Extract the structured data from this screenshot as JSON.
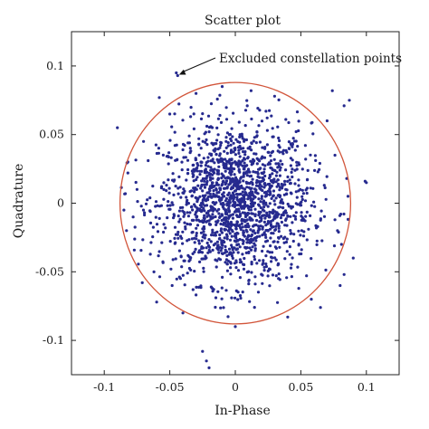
{
  "chart_data": {
    "type": "scatter",
    "title": "Scatter plot",
    "xlabel": "In-Phase",
    "ylabel": "Quadrature",
    "xlim": [
      -0.125,
      0.125
    ],
    "ylim": [
      -0.125,
      0.125
    ],
    "xticks": [
      -0.1,
      -0.05,
      0,
      0.05,
      0.1
    ],
    "xtick_labels": [
      "-0.1",
      "-0.05",
      "0",
      "0.05",
      "0.1"
    ],
    "yticks": [
      0.1,
      0.05,
      0,
      -0.05,
      -0.1
    ],
    "ytick_labels": [
      "0.1",
      "0.05",
      "0",
      "-0.05",
      "-0.1"
    ],
    "grid": false,
    "point_color": "#262a8f",
    "boundary_circle": {
      "center": [
        0.0,
        0.0
      ],
      "radius": 0.088,
      "color": "#d2553a"
    },
    "annotation": {
      "text": "Excluded constellation points",
      "target": [
        -0.045,
        0.093
      ]
    },
    "points": [
      [
        -0.045,
        0.095
      ],
      [
        -0.044,
        0.093
      ],
      [
        -0.058,
        0.077
      ],
      [
        0.074,
        0.082
      ],
      [
        0.087,
        0.075
      ],
      [
        0.083,
        0.071
      ],
      [
        -0.09,
        0.055
      ],
      [
        -0.082,
        0.03
      ],
      [
        0.1,
        0.015
      ],
      [
        0.085,
        0.018
      ],
      [
        0.099,
        0.016
      ],
      [
        -0.085,
        -0.005
      ],
      [
        -0.083,
        -0.02
      ],
      [
        -0.078,
        -0.01
      ],
      [
        0.09,
        -0.04
      ],
      [
        -0.06,
        -0.072
      ],
      [
        -0.04,
        -0.08
      ],
      [
        0.065,
        -0.076
      ],
      [
        0.08,
        -0.06
      ],
      [
        0.0,
        -0.09
      ],
      [
        -0.02,
        -0.12
      ],
      [
        -0.022,
        -0.115
      ],
      [
        -0.025,
        -0.108
      ],
      [
        0.083,
        -0.052
      ],
      [
        -0.071,
        -0.058
      ],
      [
        0.07,
        0.06
      ],
      [
        -0.07,
        0.045
      ],
      [
        0.078,
        -0.02
      ],
      [
        -0.075,
        0.01
      ],
      [
        0.04,
        -0.083
      ],
      [
        -0.03,
        0.08
      ],
      [
        0.03,
        0.078
      ],
      [
        -0.01,
        0.085
      ],
      [
        0.012,
        0.082
      ],
      [
        0.058,
        -0.07
      ],
      [
        -0.05,
        0.065
      ],
      [
        0.086,
        0.005
      ],
      [
        -0.082,
        0.022
      ]
    ],
    "cloud": {
      "count": 1700,
      "mean": [
        0.0,
        0.0
      ],
      "std": [
        0.029,
        0.029
      ],
      "max_radius": 0.088
    }
  }
}
